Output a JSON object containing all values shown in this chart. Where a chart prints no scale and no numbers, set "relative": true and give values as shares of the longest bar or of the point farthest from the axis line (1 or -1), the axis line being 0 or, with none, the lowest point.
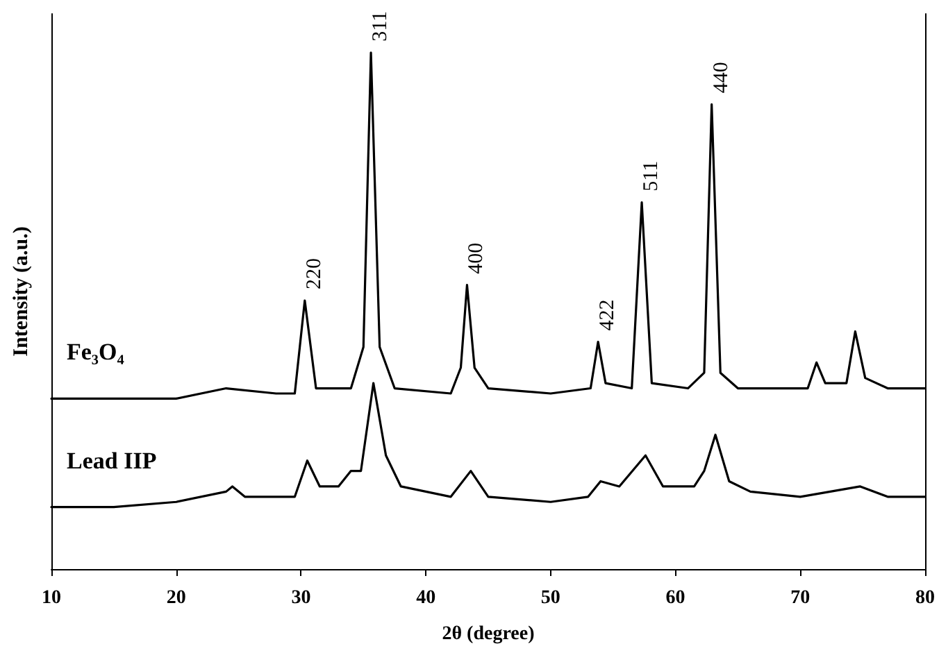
{
  "chart_data": {
    "type": "line",
    "relative": true,
    "xlabel": "2θ (degree)",
    "ylabel": "Intensity (a.u.)",
    "xlim": [
      10,
      80
    ],
    "xticks": [
      10,
      20,
      30,
      40,
      50,
      60,
      70,
      80
    ],
    "marker": "none",
    "series": [
      {
        "name": "Fe₃O₄",
        "color": "#000000",
        "x": [
          10,
          20,
          24,
          28,
          29.5,
          30.3,
          31.2,
          34,
          35,
          35.6,
          36.3,
          37.5,
          42,
          42.8,
          43.3,
          43.9,
          45,
          50,
          53.2,
          53.8,
          54.4,
          56.5,
          57.3,
          58.1,
          61,
          62.3,
          62.9,
          63.6,
          65,
          70.6,
          71.3,
          72,
          73.7,
          74.4,
          75.2,
          77,
          80
        ],
        "values": [
          0.33,
          0.33,
          0.35,
          0.34,
          0.34,
          0.52,
          0.35,
          0.35,
          0.43,
          1.0,
          0.43,
          0.35,
          0.34,
          0.39,
          0.55,
          0.39,
          0.35,
          0.34,
          0.35,
          0.44,
          0.36,
          0.35,
          0.71,
          0.36,
          0.35,
          0.38,
          0.9,
          0.38,
          0.35,
          0.35,
          0.4,
          0.36,
          0.36,
          0.46,
          0.37,
          0.35,
          0.35
        ]
      },
      {
        "name": "Lead IIP",
        "color": "#000000",
        "x": [
          10,
          15,
          20,
          24,
          24.5,
          25.5,
          29.5,
          30.5,
          31.5,
          33,
          34,
          34.8,
          35.8,
          36.8,
          38,
          42,
          43.6,
          45,
          50,
          53,
          54,
          55.5,
          57.6,
          59,
          61.5,
          62.3,
          63.2,
          64.3,
          66,
          70,
          74.8,
          77,
          80
        ],
        "values": [
          0.12,
          0.12,
          0.13,
          0.15,
          0.16,
          0.14,
          0.14,
          0.21,
          0.16,
          0.16,
          0.19,
          0.19,
          0.36,
          0.22,
          0.16,
          0.14,
          0.19,
          0.14,
          0.13,
          0.14,
          0.17,
          0.16,
          0.22,
          0.16,
          0.16,
          0.19,
          0.26,
          0.17,
          0.15,
          0.14,
          0.16,
          0.14,
          0.14
        ]
      }
    ],
    "annotations": [
      {
        "text": "220",
        "x": 30.3,
        "y": 0.52
      },
      {
        "text": "311",
        "x": 35.6,
        "y": 1.0
      },
      {
        "text": "400",
        "x": 43.3,
        "y": 0.55
      },
      {
        "text": "422",
        "x": 53.8,
        "y": 0.44
      },
      {
        "text": "511",
        "x": 57.3,
        "y": 0.71
      },
      {
        "text": "440",
        "x": 62.9,
        "y": 0.9
      }
    ]
  }
}
